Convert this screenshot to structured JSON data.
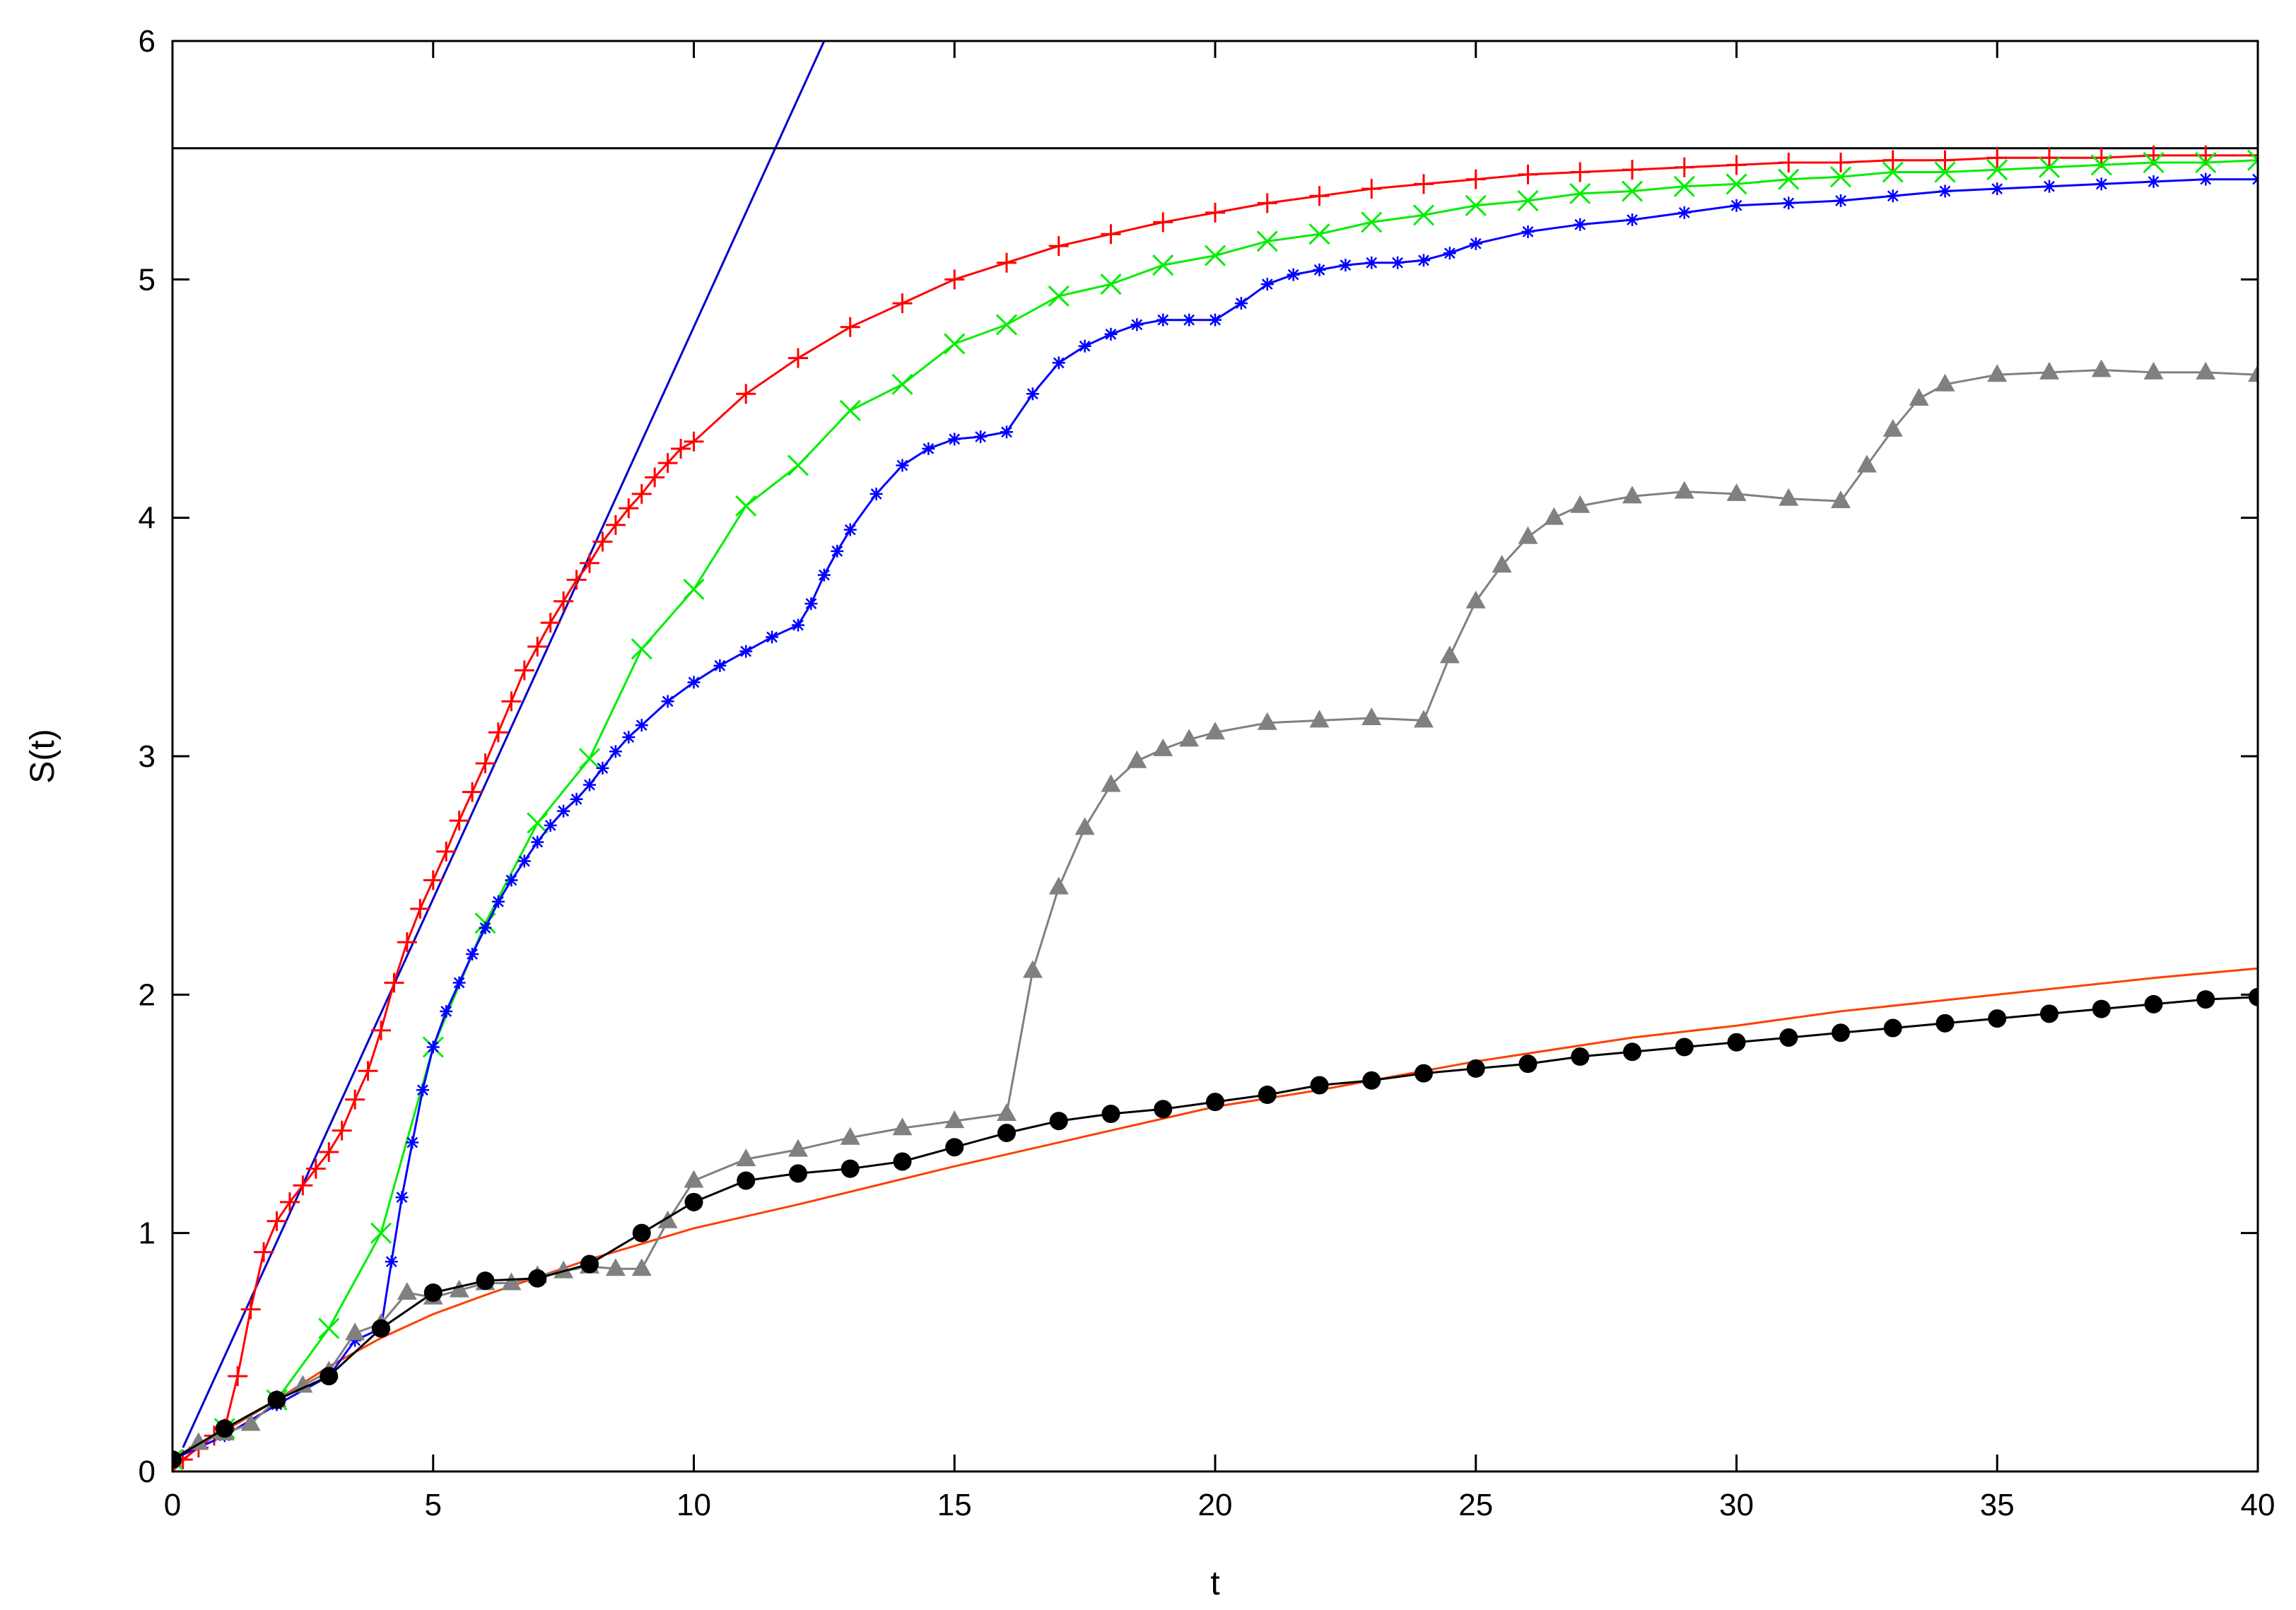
{
  "chart_data": {
    "type": "line",
    "title": "",
    "xlabel": "t",
    "ylabel": "S(t)",
    "xlim": [
      0,
      40
    ],
    "ylim": [
      0,
      6
    ],
    "xticks": [
      "0",
      "5",
      "10",
      "15",
      "20",
      "25",
      "30",
      "35",
      "40"
    ],
    "yticks": [
      "0",
      "1",
      "2",
      "3",
      "4",
      "5",
      "6"
    ],
    "grid": false,
    "legend": "none",
    "series": [
      {
        "color": "#0000cc",
        "marker": "none",
        "x": [
          0.2,
          12.5
        ],
        "y": [
          0.1,
          6.0
        ]
      },
      {
        "color": "#000000",
        "marker": "none",
        "x": [
          0,
          40
        ],
        "y": [
          5.55,
          5.55
        ]
      },
      {
        "color": "#ff4000",
        "marker": "none",
        "x": [
          0,
          0.5,
          1,
          2,
          3,
          4,
          5,
          6,
          8,
          10,
          12,
          15,
          18,
          20,
          22,
          25,
          28,
          30,
          32,
          35,
          38,
          40
        ],
        "y": [
          0,
          0.11,
          0.17,
          0.3,
          0.44,
          0.56,
          0.66,
          0.74,
          0.89,
          1.02,
          1.12,
          1.28,
          1.43,
          1.53,
          1.6,
          1.72,
          1.82,
          1.87,
          1.93,
          2.0,
          2.07,
          2.11
        ]
      },
      {
        "color": "#ff0000",
        "marker": "plus",
        "x": [
          0.2,
          0.5,
          0.8,
          1.0,
          1.25,
          1.5,
          1.75,
          2.0,
          2.25,
          2.5,
          2.75,
          3.0,
          3.25,
          3.5,
          3.75,
          4.0,
          4.25,
          4.5,
          4.75,
          5.0,
          5.25,
          5.5,
          5.75,
          6.0,
          6.25,
          6.5,
          6.75,
          7.0,
          7.25,
          7.5,
          7.75,
          8.0,
          8.25,
          8.5,
          8.75,
          9.0,
          9.25,
          9.5,
          9.75,
          10.0,
          11,
          12,
          13,
          14,
          15,
          16,
          17,
          18,
          19,
          20,
          21,
          22,
          23,
          24,
          25,
          26,
          27,
          28,
          29,
          30,
          31,
          32,
          33,
          34,
          35,
          36,
          37,
          38,
          39,
          40
        ],
        "y": [
          0.05,
          0.1,
          0.15,
          0.18,
          0.4,
          0.68,
          0.92,
          1.05,
          1.13,
          1.2,
          1.27,
          1.34,
          1.43,
          1.56,
          1.68,
          1.85,
          2.05,
          2.22,
          2.36,
          2.48,
          2.6,
          2.73,
          2.85,
          2.97,
          3.1,
          3.23,
          3.36,
          3.46,
          3.56,
          3.65,
          3.74,
          3.81,
          3.9,
          3.97,
          4.04,
          4.1,
          4.17,
          4.23,
          4.29,
          4.32,
          4.52,
          4.67,
          4.8,
          4.9,
          5.0,
          5.07,
          5.14,
          5.19,
          5.24,
          5.28,
          5.32,
          5.35,
          5.38,
          5.4,
          5.42,
          5.44,
          5.45,
          5.46,
          5.47,
          5.48,
          5.49,
          5.49,
          5.5,
          5.5,
          5.51,
          5.51,
          5.51,
          5.52,
          5.52,
          5.52
        ]
      },
      {
        "color": "#00ee00",
        "marker": "cross",
        "x": [
          0,
          1,
          2,
          3,
          4,
          5,
          6,
          7,
          8,
          9,
          10,
          11,
          12,
          13,
          14,
          15,
          16,
          17,
          18,
          19,
          20,
          21,
          22,
          23,
          24,
          25,
          26,
          27,
          28,
          29,
          30,
          31,
          32,
          33,
          34,
          35,
          36,
          37,
          38,
          39,
          40
        ],
        "y": [
          0.05,
          0.18,
          0.3,
          0.6,
          1.0,
          1.78,
          2.3,
          2.72,
          2.99,
          3.45,
          3.7,
          4.05,
          4.22,
          4.45,
          4.56,
          4.73,
          4.81,
          4.93,
          4.98,
          5.06,
          5.1,
          5.16,
          5.19,
          5.24,
          5.27,
          5.31,
          5.33,
          5.36,
          5.37,
          5.39,
          5.4,
          5.42,
          5.43,
          5.45,
          5.45,
          5.46,
          5.47,
          5.48,
          5.49,
          5.49,
          5.5
        ]
      },
      {
        "color": "#0000ff",
        "marker": "star",
        "x": [
          0,
          1,
          2,
          3,
          3.5,
          4,
          4.2,
          4.4,
          4.6,
          4.8,
          5.0,
          5.25,
          5.5,
          5.75,
          6.0,
          6.25,
          6.5,
          6.75,
          7.0,
          7.25,
          7.5,
          7.75,
          8.0,
          8.25,
          8.5,
          8.75,
          9.0,
          9.5,
          10.0,
          10.5,
          11.0,
          11.5,
          12.0,
          12.25,
          12.5,
          12.75,
          13.0,
          13.5,
          14.0,
          14.5,
          15.0,
          15.5,
          16.0,
          16.5,
          17.0,
          17.5,
          18.0,
          18.5,
          19.0,
          19.5,
          20.0,
          20.5,
          21.0,
          21.5,
          22.0,
          22.5,
          23.0,
          23.5,
          24.0,
          24.5,
          25.0,
          26,
          27,
          28,
          29,
          30,
          31,
          32,
          33,
          34,
          35,
          36,
          37,
          38,
          39,
          40
        ],
        "y": [
          0.05,
          0.15,
          0.28,
          0.4,
          0.55,
          0.6,
          0.88,
          1.15,
          1.38,
          1.6,
          1.78,
          1.93,
          2.05,
          2.17,
          2.28,
          2.39,
          2.48,
          2.56,
          2.64,
          2.71,
          2.77,
          2.82,
          2.88,
          2.95,
          3.02,
          3.08,
          3.13,
          3.23,
          3.31,
          3.38,
          3.44,
          3.5,
          3.55,
          3.64,
          3.76,
          3.86,
          3.95,
          4.1,
          4.22,
          4.29,
          4.33,
          4.34,
          4.36,
          4.52,
          4.65,
          4.72,
          4.77,
          4.81,
          4.83,
          4.83,
          4.83,
          4.9,
          4.98,
          5.02,
          5.04,
          5.06,
          5.07,
          5.07,
          5.08,
          5.11,
          5.15,
          5.2,
          5.23,
          5.25,
          5.28,
          5.31,
          5.32,
          5.33,
          5.35,
          5.37,
          5.38,
          5.39,
          5.4,
          5.41,
          5.42,
          5.42
        ]
      },
      {
        "color": "#808080",
        "marker": "triangle",
        "x": [
          0,
          0.5,
          1,
          1.5,
          2,
          2.5,
          3,
          3.5,
          4,
          4.5,
          5,
          5.5,
          6,
          6.5,
          7,
          7.5,
          8,
          8.5,
          9,
          9.5,
          10,
          11,
          12,
          13,
          14,
          15,
          16,
          16.5,
          17,
          17.5,
          18,
          18.5,
          19,
          19.5,
          20,
          21,
          22,
          23,
          24,
          24.5,
          25,
          25.5,
          26,
          26.5,
          27,
          28,
          29,
          30,
          31,
          32,
          32.5,
          33,
          33.5,
          34,
          35,
          36,
          37,
          38,
          39,
          40
        ],
        "y": [
          0.05,
          0.12,
          0.16,
          0.2,
          0.3,
          0.36,
          0.42,
          0.58,
          0.62,
          0.75,
          0.73,
          0.76,
          0.79,
          0.79,
          0.82,
          0.84,
          0.86,
          0.85,
          0.85,
          1.05,
          1.22,
          1.31,
          1.35,
          1.4,
          1.44,
          1.47,
          1.5,
          2.1,
          2.45,
          2.7,
          2.88,
          2.98,
          3.03,
          3.07,
          3.1,
          3.14,
          3.15,
          3.16,
          3.15,
          3.42,
          3.65,
          3.8,
          3.92,
          4.0,
          4.05,
          4.09,
          4.11,
          4.1,
          4.08,
          4.07,
          4.22,
          4.37,
          4.5,
          4.56,
          4.6,
          4.61,
          4.62,
          4.61,
          4.61,
          4.6
        ]
      },
      {
        "color": "#000000",
        "marker": "circle",
        "x": [
          0,
          1,
          2,
          3,
          4,
          5,
          6,
          7,
          8,
          9,
          10,
          11,
          12,
          13,
          14,
          15,
          16,
          17,
          18,
          19,
          20,
          21,
          22,
          23,
          24,
          25,
          26,
          27,
          28,
          29,
          30,
          31,
          32,
          33,
          34,
          35,
          36,
          37,
          38,
          39,
          40
        ],
        "y": [
          0.05,
          0.18,
          0.3,
          0.4,
          0.6,
          0.75,
          0.8,
          0.81,
          0.87,
          1.0,
          1.13,
          1.22,
          1.25,
          1.27,
          1.3,
          1.36,
          1.42,
          1.47,
          1.5,
          1.52,
          1.55,
          1.58,
          1.62,
          1.64,
          1.67,
          1.69,
          1.71,
          1.74,
          1.76,
          1.78,
          1.8,
          1.82,
          1.84,
          1.86,
          1.88,
          1.9,
          1.92,
          1.94,
          1.96,
          1.98,
          1.99
        ]
      }
    ]
  }
}
